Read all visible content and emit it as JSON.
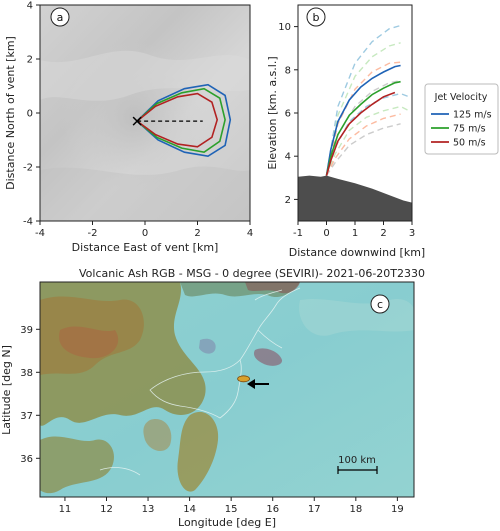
{
  "panel_a": {
    "tag": "a",
    "xlabel": "Distance East of vent [km]",
    "ylabel": "Distance North of vent [km]",
    "xticks": [
      "-4",
      "-2",
      "0",
      "2",
      "4"
    ],
    "yticks": [
      "-4",
      "-2",
      "0",
      "2",
      "4"
    ]
  },
  "panel_b": {
    "tag": "b",
    "xlabel": "Distance downwind [km]",
    "ylabel": "Elevation [km. a.s.l.]",
    "xticks": [
      "-1",
      "0",
      "1",
      "2",
      "3"
    ],
    "yticks": [
      "2",
      "4",
      "6",
      "8",
      "10"
    ]
  },
  "legend": {
    "title": "Jet Velocity",
    "entries": [
      {
        "label": "125 m/s",
        "color": "#1f63b6"
      },
      {
        "label": "75 m/s",
        "color": "#2ca02c"
      },
      {
        "label": "50 m/s",
        "color": "#b22222"
      }
    ]
  },
  "panel_c": {
    "tag": "c",
    "title": "Volcanic Ash RGB - MSG - 0 degree (SEVIRI)- 2021-06-20T2330",
    "xlabel": "Longitude [deg E]",
    "ylabel": "Latitude [deg N]",
    "xticks": [
      "11",
      "12",
      "13",
      "14",
      "15",
      "16",
      "17",
      "18",
      "19"
    ],
    "yticks": [
      "36",
      "37",
      "38",
      "39"
    ],
    "scalebar": "100 km"
  },
  "chart_data": [
    {
      "type": "line",
      "panel": "a",
      "xlim": [
        -4,
        4
      ],
      "ylim": [
        -4,
        4
      ],
      "vent": [
        -0.3,
        -0.3
      ],
      "series": [
        {
          "name": "125 m/s",
          "color": "#1f63b6",
          "x": [
            -0.3,
            0.5,
            1.5,
            2.4,
            3.05,
            3.25,
            3.05,
            2.4,
            1.5,
            0.5,
            -0.3
          ],
          "y": [
            -0.3,
            0.45,
            0.9,
            1.05,
            0.65,
            -0.25,
            -1.2,
            -1.6,
            -1.45,
            -1.0,
            -0.3
          ]
        },
        {
          "name": "75 m/s",
          "color": "#2ca02c",
          "x": [
            -0.3,
            0.45,
            1.4,
            2.25,
            2.85,
            3.05,
            2.85,
            2.25,
            1.4,
            0.45,
            -0.3
          ],
          "y": [
            -0.3,
            0.35,
            0.75,
            0.9,
            0.55,
            -0.25,
            -1.05,
            -1.45,
            -1.3,
            -0.9,
            -0.3
          ]
        },
        {
          "name": "50 m/s",
          "color": "#b22222",
          "x": [
            -0.3,
            0.4,
            1.25,
            2.0,
            2.55,
            2.75,
            2.55,
            2.0,
            1.25,
            0.4,
            -0.3
          ],
          "y": [
            -0.3,
            0.25,
            0.6,
            0.72,
            0.4,
            -0.25,
            -0.9,
            -1.25,
            -1.15,
            -0.8,
            -0.3
          ]
        }
      ],
      "wind_line": {
        "x": [
          -0.3,
          2.2
        ],
        "y": [
          -0.3,
          -0.3
        ]
      }
    },
    {
      "type": "line",
      "panel": "b",
      "xlim": [
        -1,
        3
      ],
      "ylim": [
        1,
        11
      ],
      "terrain": {
        "x": [
          -1,
          -0.6,
          -0.2,
          0.0,
          0.4,
          1.0,
          1.6,
          2.2,
          2.7,
          3.0
        ],
        "y": [
          3.05,
          3.1,
          3.05,
          3.1,
          2.95,
          2.75,
          2.5,
          2.2,
          1.95,
          1.85
        ]
      },
      "series": [
        {
          "name": "125 m/s",
          "color": "#1f63b6",
          "x": [
            0.0,
            0.15,
            0.4,
            0.8,
            1.2,
            1.6,
            2.0,
            2.4,
            2.6
          ],
          "y": [
            3.1,
            4.3,
            5.6,
            6.6,
            7.2,
            7.6,
            7.9,
            8.15,
            8.2
          ]
        },
        {
          "name": "75 m/s",
          "color": "#2ca02c",
          "x": [
            0.0,
            0.15,
            0.4,
            0.8,
            1.2,
            1.6,
            2.0,
            2.4,
            2.6
          ],
          "y": [
            3.1,
            4.0,
            5.0,
            5.9,
            6.4,
            6.85,
            7.15,
            7.4,
            7.45
          ]
        },
        {
          "name": "50 m/s",
          "color": "#b22222",
          "x": [
            0.0,
            0.15,
            0.4,
            0.8,
            1.2,
            1.6,
            2.0,
            2.4
          ],
          "y": [
            3.1,
            3.8,
            4.7,
            5.5,
            6.0,
            6.4,
            6.75,
            6.95
          ]
        }
      ],
      "dashed_series": [
        {
          "color": "#9ecae1",
          "x": [
            0.0,
            0.4,
            1.0,
            1.6,
            2.2,
            2.6
          ],
          "y": [
            3.1,
            6.3,
            8.3,
            9.3,
            9.9,
            10.05
          ]
        },
        {
          "color": "#c7e9c0",
          "x": [
            0.0,
            0.4,
            1.0,
            1.6,
            2.2,
            2.6
          ],
          "y": [
            3.1,
            5.9,
            7.7,
            8.6,
            9.1,
            9.25
          ]
        },
        {
          "color": "#fcbba1",
          "x": [
            0.0,
            0.4,
            1.0,
            1.6,
            2.2,
            2.6
          ],
          "y": [
            3.1,
            5.5,
            7.1,
            7.9,
            8.3,
            8.35
          ]
        },
        {
          "color": "#cccccc",
          "x": [
            0.0,
            0.4,
            1.0,
            1.6,
            2.2,
            2.6
          ],
          "y": [
            3.1,
            5.0,
            6.3,
            7.0,
            7.4,
            7.5
          ]
        },
        {
          "color": "#9ecae1",
          "x": [
            0.0,
            0.3,
            0.8,
            1.4,
            2.0,
            2.6,
            2.9
          ],
          "y": [
            3.1,
            4.4,
            5.6,
            6.3,
            6.7,
            6.9,
            6.75
          ]
        },
        {
          "color": "#c7e9c0",
          "x": [
            0.0,
            0.3,
            0.8,
            1.4,
            2.0,
            2.6,
            2.9
          ],
          "y": [
            3.1,
            4.1,
            5.2,
            5.8,
            6.1,
            6.3,
            6.1
          ]
        },
        {
          "color": "#fcbba1",
          "x": [
            0.0,
            0.3,
            0.8,
            1.4,
            2.0,
            2.6
          ],
          "y": [
            3.1,
            3.9,
            4.8,
            5.4,
            5.75,
            5.95
          ]
        },
        {
          "color": "#cccccc",
          "x": [
            0.0,
            0.3,
            0.8,
            1.4,
            2.0,
            2.6
          ],
          "y": [
            3.1,
            3.7,
            4.5,
            5.0,
            5.3,
            5.5
          ]
        }
      ]
    },
    {
      "type": "heatmap",
      "panel": "c",
      "xlim": [
        10.4,
        19.4
      ],
      "ylim": [
        35.1,
        40.1
      ],
      "ash_marker": [
        15.3,
        37.85
      ]
    }
  ]
}
